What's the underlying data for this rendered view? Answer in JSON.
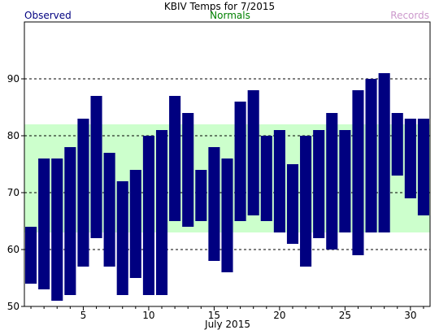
{
  "chart_data": {
    "type": "bar",
    "subtype": "floating-range",
    "title": "KBIV Temps for 7/2015",
    "legend": {
      "observed": "Observed",
      "normals": "Normals",
      "records": "Records"
    },
    "xlabel": "July 2015",
    "x_ticks": [
      5,
      10,
      15,
      20,
      25,
      30
    ],
    "y_ticks": [
      50,
      60,
      70,
      80,
      90
    ],
    "xlim": [
      0.5,
      31.5
    ],
    "ylim": [
      50,
      100
    ],
    "grid": "horizontal dashed at y ticks",
    "colors": {
      "observed": "#000080",
      "normals": "#ccffcc",
      "normals_label": "#008000",
      "records_label": "#cc99cc",
      "observed_label": "#000080"
    },
    "series": [
      {
        "name": "Observed",
        "days": [
          1,
          2,
          3,
          4,
          5,
          6,
          7,
          8,
          9,
          10,
          11,
          12,
          13,
          14,
          15,
          16,
          17,
          18,
          19,
          20,
          21,
          22,
          23,
          24,
          25,
          26,
          27,
          28,
          29,
          30,
          31
        ],
        "low": [
          54,
          53,
          51,
          52,
          57,
          62,
          57,
          52,
          55,
          52,
          52,
          65,
          64,
          65,
          58,
          56,
          65,
          66,
          65,
          63,
          61,
          57,
          62,
          60,
          63,
          59,
          63,
          63,
          73,
          69,
          66
        ],
        "high": [
          64,
          76,
          76,
          78,
          83,
          87,
          77,
          72,
          74,
          80,
          81,
          87,
          84,
          74,
          78,
          76,
          86,
          88,
          80,
          81,
          75,
          80,
          81,
          84,
          81,
          88,
          90,
          91,
          84,
          83,
          83
        ]
      },
      {
        "name": "Normals",
        "low": 63,
        "high": 82
      }
    ]
  }
}
